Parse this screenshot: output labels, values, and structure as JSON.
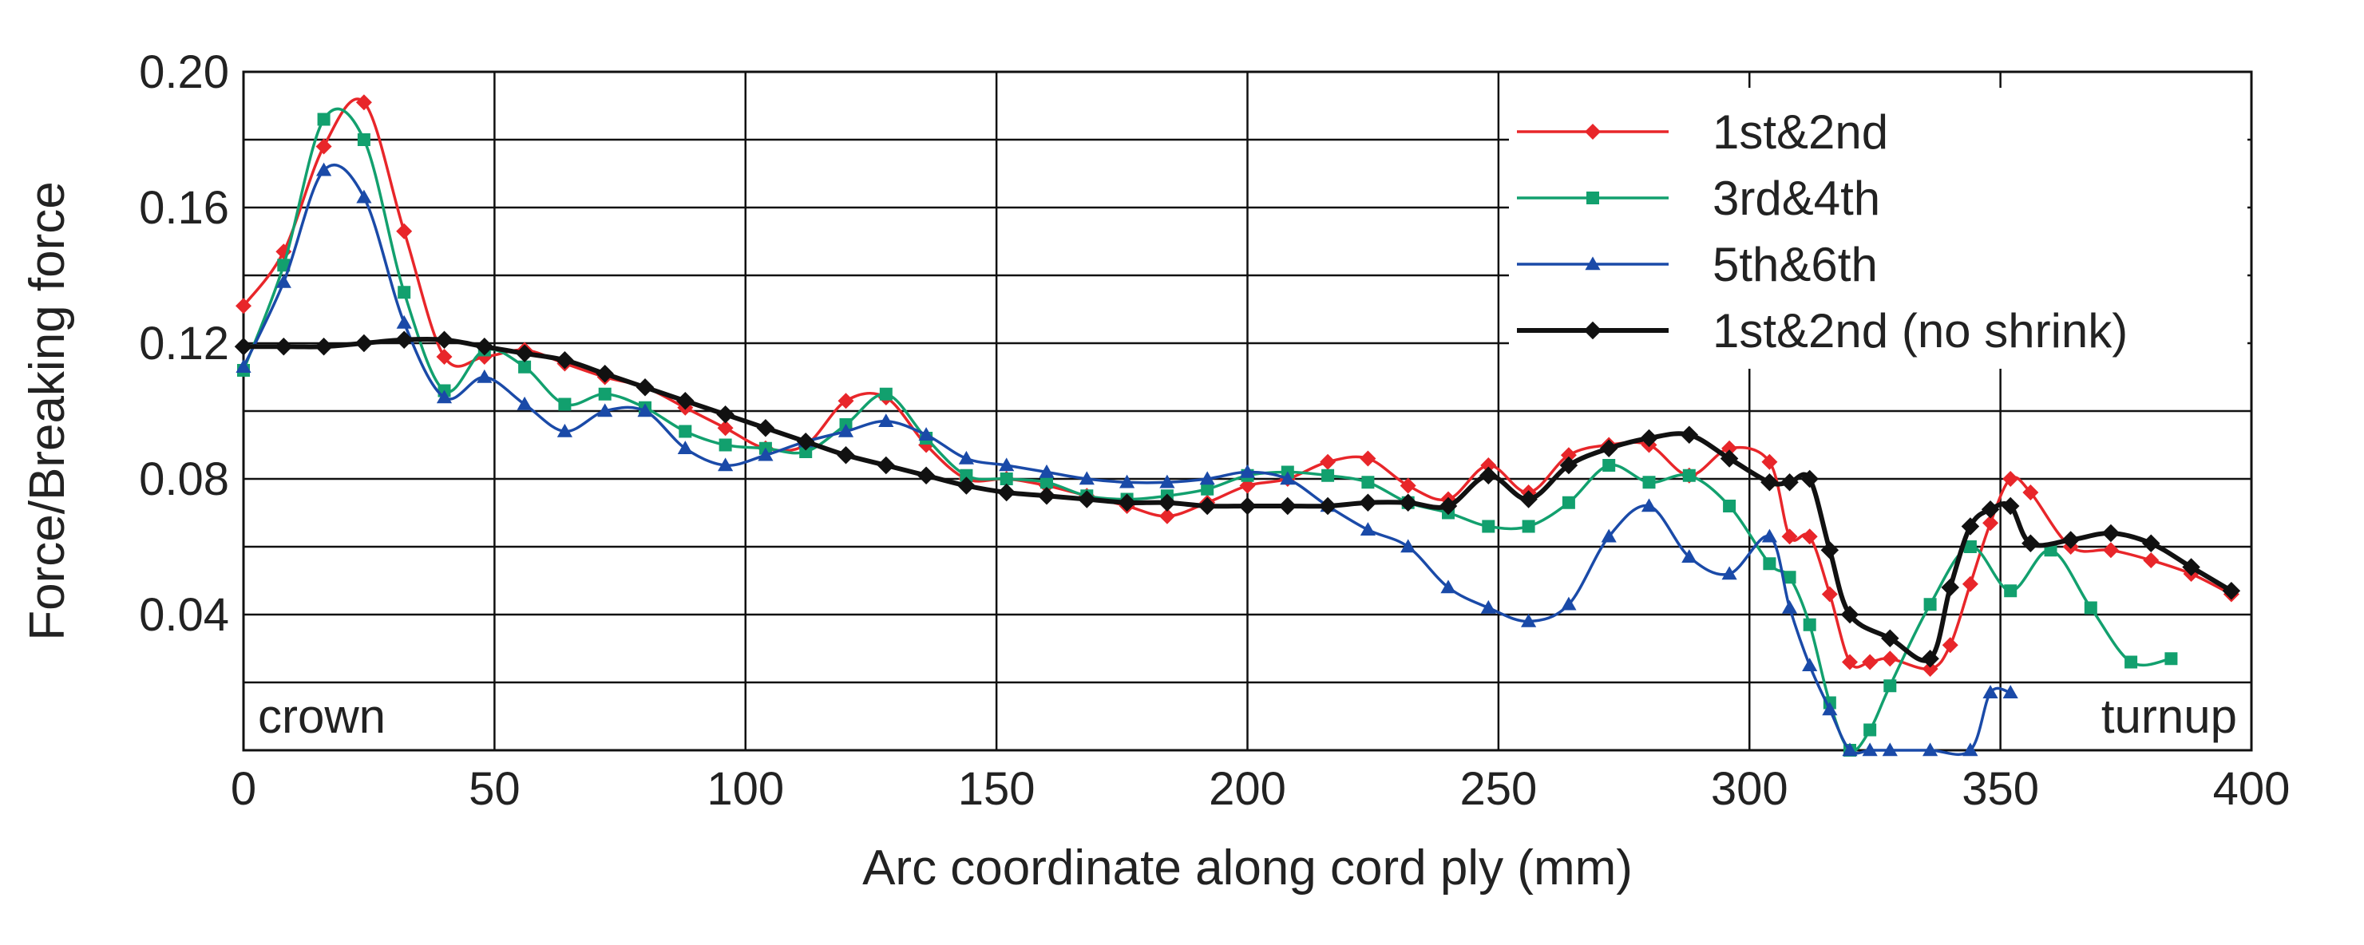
{
  "chart_data": {
    "type": "line",
    "title": "",
    "xlabel": "Arc coordinate along cord ply (mm)",
    "ylabel": "Force/Breaking force",
    "xlim": [
      0,
      400
    ],
    "ylim": [
      0,
      0.2
    ],
    "xticks": [
      0,
      50,
      100,
      150,
      200,
      250,
      300,
      350,
      400
    ],
    "yticks": [
      0.04,
      0.08,
      0.12,
      0.16,
      0.2
    ],
    "ytick_labels": [
      "0.04",
      "0.08",
      "0.12",
      "0.16",
      "0.20"
    ],
    "grid": true,
    "legend_position": "top-right",
    "annotations": {
      "left": "crown",
      "right": "turnup"
    },
    "series": [
      {
        "name": "1st&2nd",
        "color": "#e8262a",
        "marker": "diamond",
        "thick": false,
        "x": [
          0,
          8,
          16,
          24,
          32,
          40,
          48,
          56,
          64,
          72,
          80,
          88,
          96,
          104,
          112,
          120,
          128,
          136,
          144,
          152,
          160,
          168,
          176,
          184,
          192,
          200,
          208,
          216,
          224,
          232,
          240,
          248,
          256,
          264,
          272,
          280,
          288,
          296,
          304,
          308,
          312,
          316,
          320,
          324,
          328,
          336,
          340,
          344,
          348,
          352,
          356,
          364,
          372,
          380,
          388,
          396
        ],
        "y": [
          0.131,
          0.147,
          0.178,
          0.191,
          0.153,
          0.116,
          0.116,
          0.118,
          0.114,
          0.11,
          0.107,
          0.101,
          0.095,
          0.089,
          0.09,
          0.103,
          0.104,
          0.09,
          0.08,
          0.08,
          0.078,
          0.075,
          0.072,
          0.069,
          0.073,
          0.078,
          0.08,
          0.085,
          0.086,
          0.078,
          0.074,
          0.084,
          0.076,
          0.087,
          0.09,
          0.09,
          0.081,
          0.089,
          0.085,
          0.063,
          0.063,
          0.046,
          0.026,
          0.026,
          0.027,
          0.024,
          0.031,
          0.049,
          0.067,
          0.08,
          0.076,
          0.06,
          0.059,
          0.056,
          0.052,
          0.046
        ]
      },
      {
        "name": "3rd&4th",
        "color": "#12a06e",
        "marker": "square",
        "thick": false,
        "x": [
          0,
          8,
          16,
          24,
          32,
          40,
          48,
          56,
          64,
          72,
          80,
          88,
          96,
          104,
          112,
          120,
          128,
          136,
          144,
          152,
          160,
          168,
          176,
          184,
          192,
          200,
          208,
          216,
          224,
          232,
          240,
          248,
          256,
          264,
          272,
          280,
          288,
          296,
          304,
          308,
          312,
          316,
          320,
          324,
          328,
          336,
          344,
          352,
          360,
          368,
          376,
          384
        ],
        "y": [
          0.112,
          0.143,
          0.186,
          0.18,
          0.135,
          0.106,
          0.118,
          0.113,
          0.102,
          0.105,
          0.101,
          0.094,
          0.09,
          0.089,
          0.088,
          0.096,
          0.105,
          0.092,
          0.081,
          0.08,
          0.079,
          0.075,
          0.074,
          0.075,
          0.077,
          0.081,
          0.082,
          0.081,
          0.079,
          0.073,
          0.07,
          0.066,
          0.066,
          0.073,
          0.084,
          0.079,
          0.081,
          0.072,
          0.055,
          0.051,
          0.037,
          0.014,
          0.0,
          0.006,
          0.019,
          0.043,
          0.06,
          0.047,
          0.059,
          0.042,
          0.026,
          0.027
        ]
      },
      {
        "name": "5th&6th",
        "color": "#1a4aa8",
        "marker": "triangle",
        "thick": false,
        "x": [
          0,
          8,
          16,
          24,
          32,
          40,
          48,
          56,
          64,
          72,
          80,
          88,
          96,
          104,
          112,
          120,
          128,
          136,
          144,
          152,
          160,
          168,
          176,
          184,
          192,
          200,
          208,
          216,
          224,
          232,
          240,
          248,
          256,
          264,
          272,
          280,
          288,
          296,
          304,
          308,
          312,
          316,
          320,
          324,
          328,
          336,
          344,
          348,
          352
        ],
        "y": [
          0.113,
          0.138,
          0.171,
          0.163,
          0.126,
          0.104,
          0.11,
          0.102,
          0.094,
          0.1,
          0.1,
          0.089,
          0.084,
          0.087,
          0.091,
          0.094,
          0.097,
          0.093,
          0.086,
          0.084,
          0.082,
          0.08,
          0.079,
          0.079,
          0.08,
          0.082,
          0.08,
          0.072,
          0.065,
          0.06,
          0.048,
          0.042,
          0.038,
          0.043,
          0.063,
          0.072,
          0.057,
          0.052,
          0.063,
          0.042,
          0.025,
          0.012,
          0.0,
          0.0,
          0.0,
          0.0,
          0.0,
          0.017,
          0.017
        ]
      },
      {
        "name": "1st&2nd (no shrink)",
        "color": "#111111",
        "marker": "diamond",
        "thick": true,
        "x": [
          0,
          8,
          16,
          24,
          32,
          40,
          48,
          56,
          64,
          72,
          80,
          88,
          96,
          104,
          112,
          120,
          128,
          136,
          144,
          152,
          160,
          168,
          176,
          184,
          192,
          200,
          208,
          216,
          224,
          232,
          240,
          248,
          256,
          264,
          272,
          280,
          288,
          296,
          304,
          308,
          312,
          316,
          320,
          328,
          336,
          340,
          344,
          348,
          352,
          356,
          364,
          372,
          380,
          388,
          396
        ],
        "y": [
          0.119,
          0.119,
          0.119,
          0.12,
          0.121,
          0.121,
          0.119,
          0.117,
          0.115,
          0.111,
          0.107,
          0.103,
          0.099,
          0.095,
          0.091,
          0.087,
          0.084,
          0.081,
          0.078,
          0.076,
          0.075,
          0.074,
          0.073,
          0.073,
          0.072,
          0.072,
          0.072,
          0.072,
          0.073,
          0.073,
          0.072,
          0.081,
          0.074,
          0.084,
          0.089,
          0.092,
          0.093,
          0.086,
          0.079,
          0.079,
          0.08,
          0.059,
          0.04,
          0.033,
          0.027,
          0.048,
          0.066,
          0.071,
          0.072,
          0.061,
          0.062,
          0.064,
          0.061,
          0.054,
          0.047
        ]
      }
    ]
  }
}
